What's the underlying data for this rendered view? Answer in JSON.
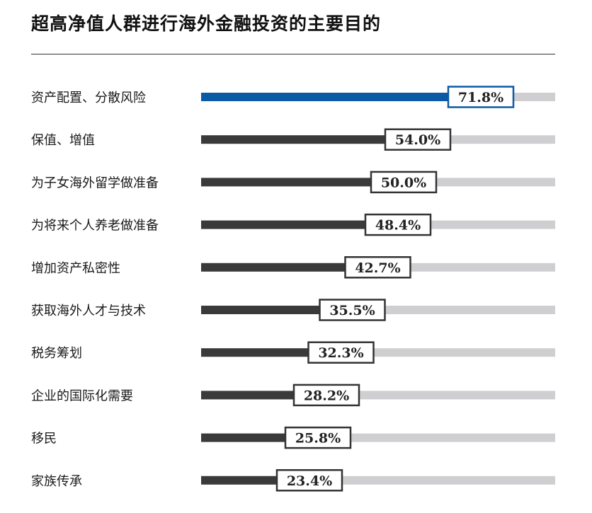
{
  "title": "超高净值人群进行海外金融投资的主要目的",
  "colors": {
    "highlight": "#0b5aa6",
    "bar": "#3a3a3a",
    "track": "#cfcfd1",
    "box_border": "#333333",
    "box_border_highlight": "#0b5aa6"
  },
  "chart_data": {
    "type": "bar",
    "orientation": "horizontal",
    "title": "超高净值人群进行海外金融投资的主要目的",
    "unit": "%",
    "xlim": [
      0,
      100
    ],
    "grid": false,
    "highlight_index": 0,
    "categories": [
      "资产配置、分散风险",
      "保值、增值",
      "为子女海外留学做准备",
      "为将来个人养老做准备",
      "增加资产私密性",
      "获取海外人才与技术",
      "税务筹划",
      "企业的国际化需要",
      "移民",
      "家族传承"
    ],
    "values": [
      71.8,
      54.0,
      50.0,
      48.4,
      42.7,
      35.5,
      32.3,
      28.2,
      25.8,
      23.4
    ],
    "value_labels": [
      "71.8%",
      "54.0%",
      "50.0%",
      "48.4%",
      "42.7%",
      "35.5%",
      "32.3%",
      "28.2%",
      "25.8%",
      "23.4%"
    ]
  }
}
